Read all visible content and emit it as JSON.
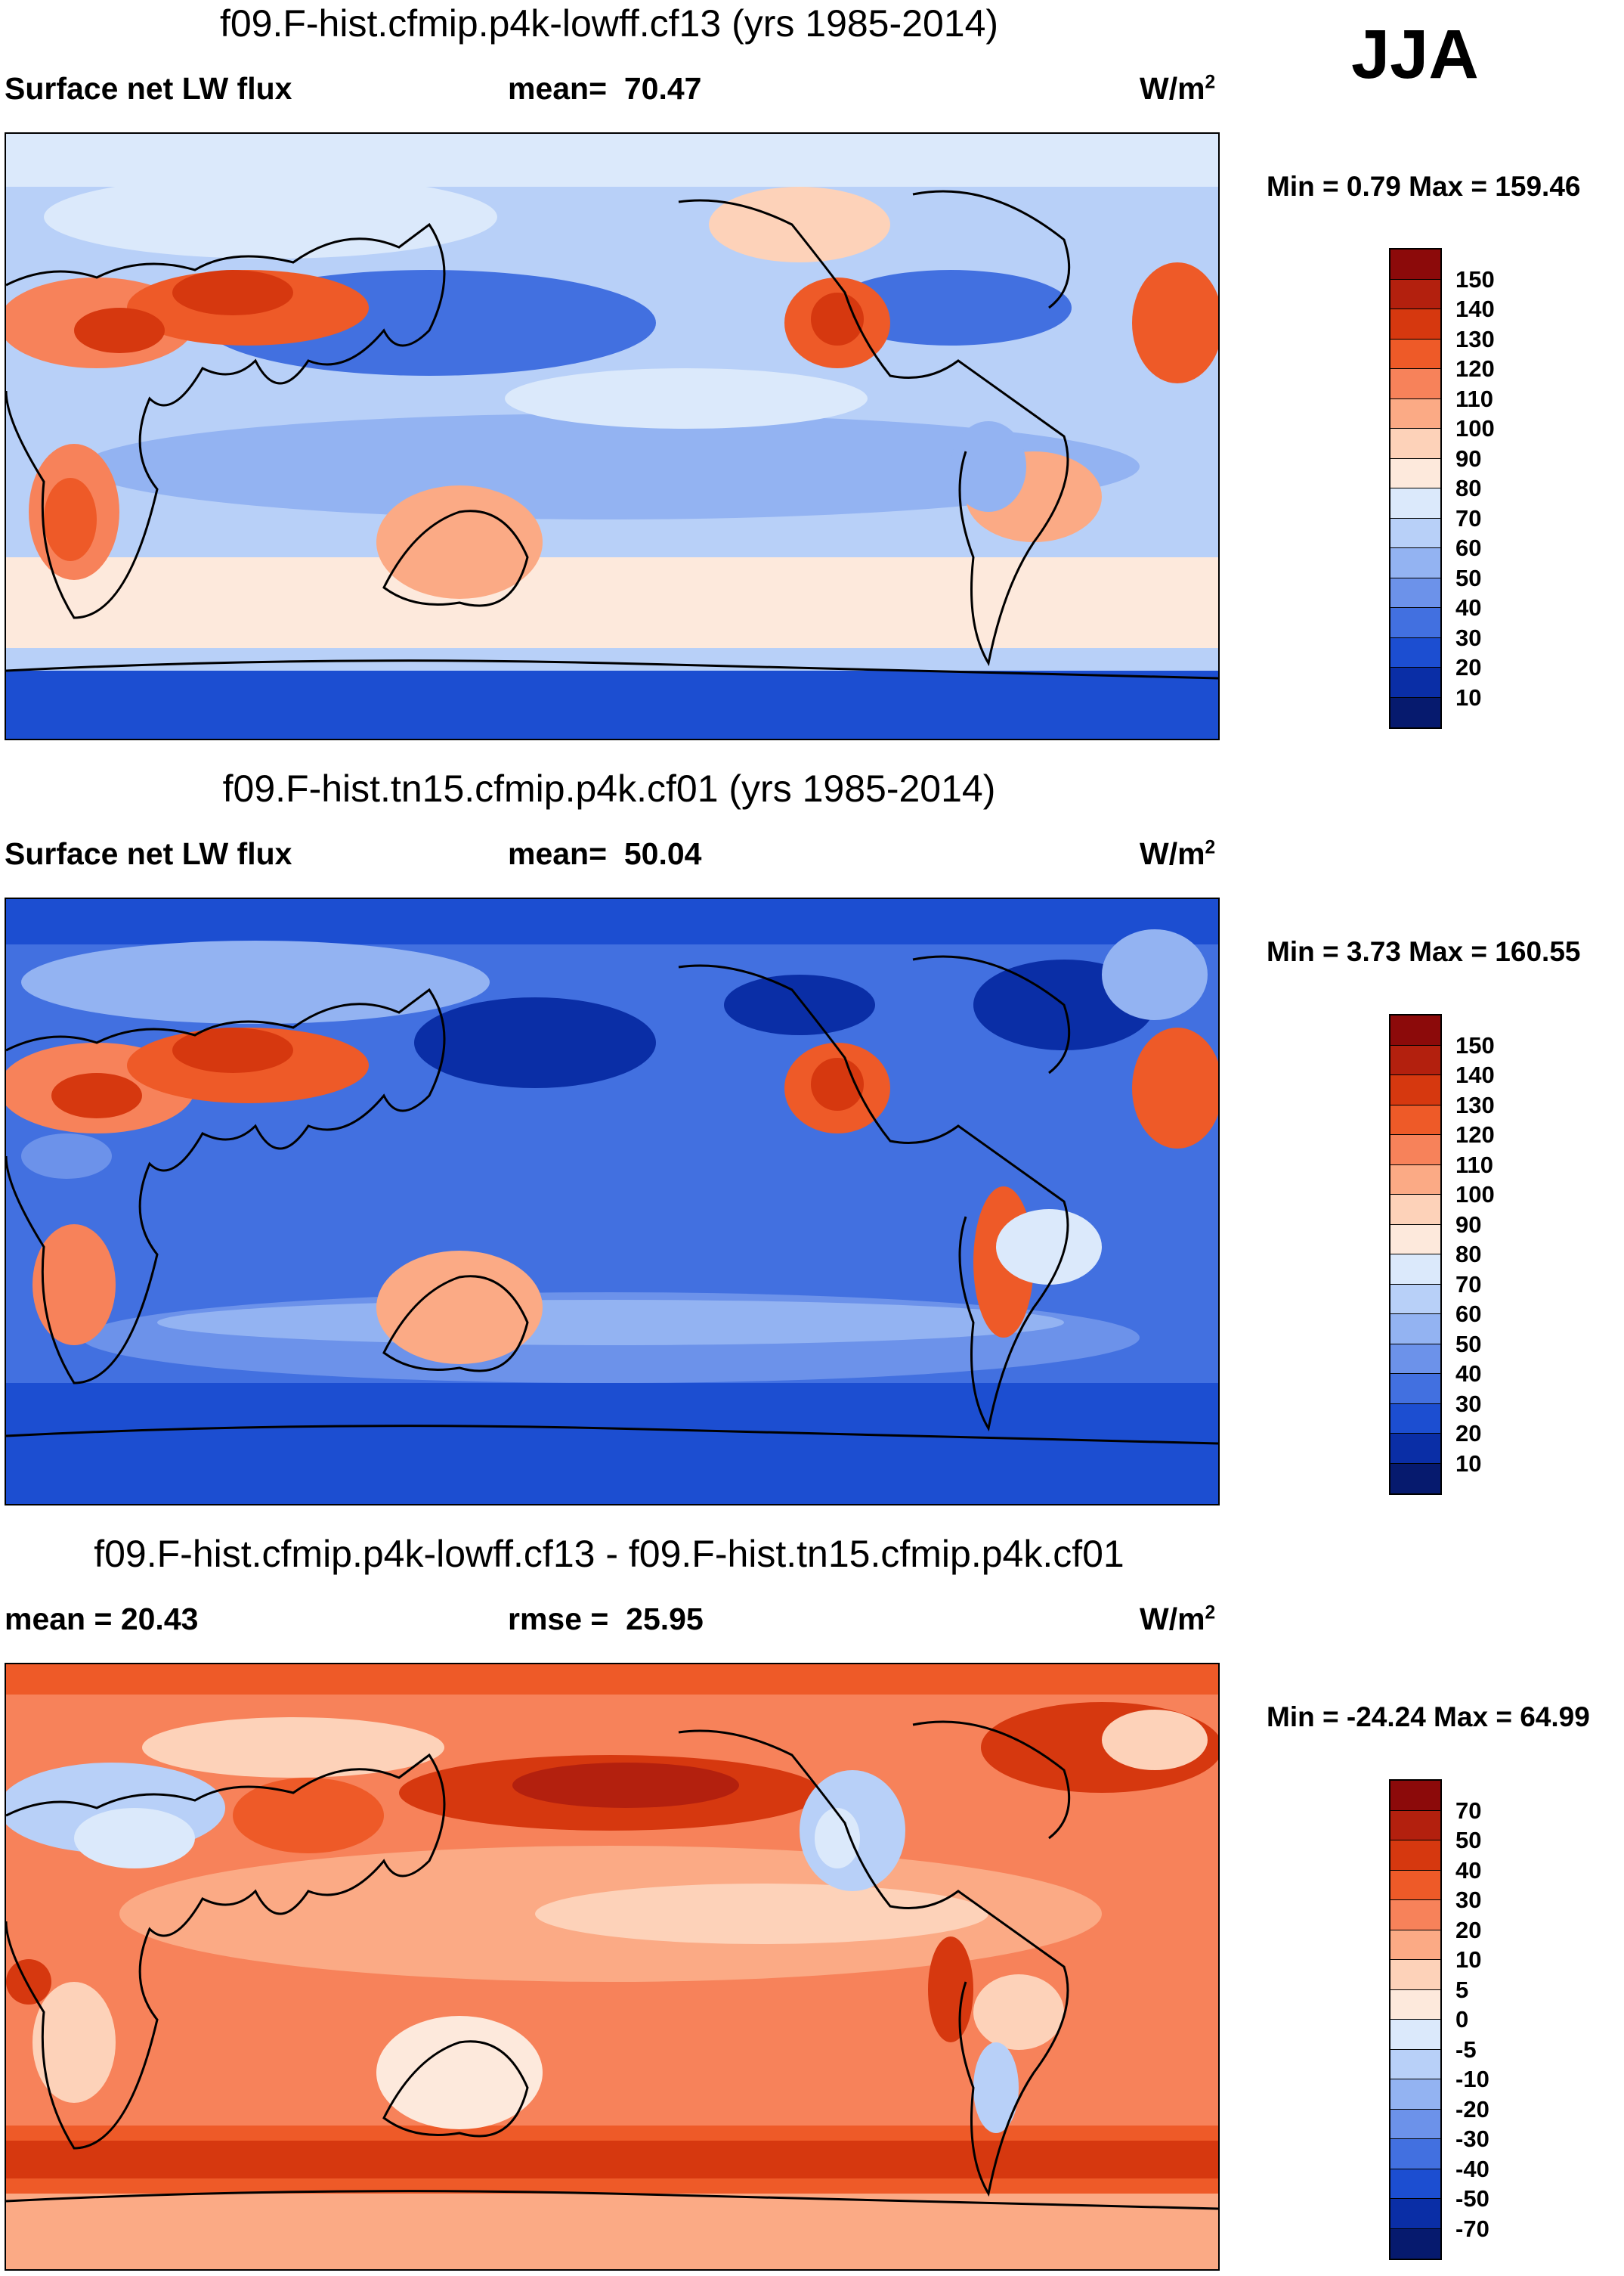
{
  "season": "JJA",
  "units_base": "W/m",
  "units_sup": "2",
  "chart_data": [
    {
      "type": "heatmap",
      "title": "f09.F-hist.cfmip.p4k-lowff.cf13 (yrs 1985-2014)",
      "variable": "Surface net LW flux",
      "stat_label": "mean=",
      "stat_value": "70.47",
      "minmax": "Min =   0.79 Max = 159.46",
      "min": 0.79,
      "max": 159.46,
      "colorbar_levels": [
        "150",
        "140",
        "130",
        "120",
        "110",
        "100",
        "90",
        "80",
        "70",
        "60",
        "50",
        "40",
        "30",
        "20",
        "10"
      ],
      "colors": [
        "#8c0a0a",
        "#b3200e",
        "#d6380f",
        "#ee5a28",
        "#f7825a",
        "#fbaa85",
        "#fdd2b9",
        "#fde9dc",
        "#dbe9fb",
        "#b8d0f8",
        "#93b3f2",
        "#6c92ea",
        "#4270e0",
        "#1c4ed1",
        "#0a2ea6",
        "#061a6e"
      ]
    },
    {
      "type": "heatmap",
      "title": "f09.F-hist.tn15.cfmip.p4k.cf01 (yrs 1985-2014)",
      "variable": "Surface net LW flux",
      "stat_label": "mean=",
      "stat_value": "50.04",
      "minmax": "Min =   3.73 Max = 160.55",
      "min": 3.73,
      "max": 160.55,
      "colorbar_levels": [
        "150",
        "140",
        "130",
        "120",
        "110",
        "100",
        "90",
        "80",
        "70",
        "60",
        "50",
        "40",
        "30",
        "20",
        "10"
      ],
      "colors": [
        "#8c0a0a",
        "#b3200e",
        "#d6380f",
        "#ee5a28",
        "#f7825a",
        "#fbaa85",
        "#fdd2b9",
        "#fde9dc",
        "#dbe9fb",
        "#b8d0f8",
        "#93b3f2",
        "#6c92ea",
        "#4270e0",
        "#1c4ed1",
        "#0a2ea6",
        "#061a6e"
      ]
    },
    {
      "type": "heatmap",
      "title": "f09.F-hist.cfmip.p4k-lowff.cf13 - f09.F-hist.tn15.cfmip.p4k.cf01",
      "left_label": "mean =  20.43",
      "stat_label": "rmse =",
      "stat_value": "25.95",
      "minmax": "Min = -24.24 Max =  64.99",
      "min": -24.24,
      "max": 64.99,
      "colorbar_levels": [
        "70",
        "50",
        "40",
        "30",
        "20",
        "10",
        "5",
        "0",
        "-5",
        "-10",
        "-20",
        "-30",
        "-40",
        "-50",
        "-70"
      ],
      "colors": [
        "#8c0a0a",
        "#b3200e",
        "#d6380f",
        "#ee5a28",
        "#f7825a",
        "#fbaa85",
        "#fdd2b9",
        "#fde9dc",
        "#dbe9fb",
        "#b8d0f8",
        "#93b3f2",
        "#6c92ea",
        "#4270e0",
        "#1c4ed1",
        "#0a2ea6",
        "#061a6e"
      ]
    }
  ]
}
